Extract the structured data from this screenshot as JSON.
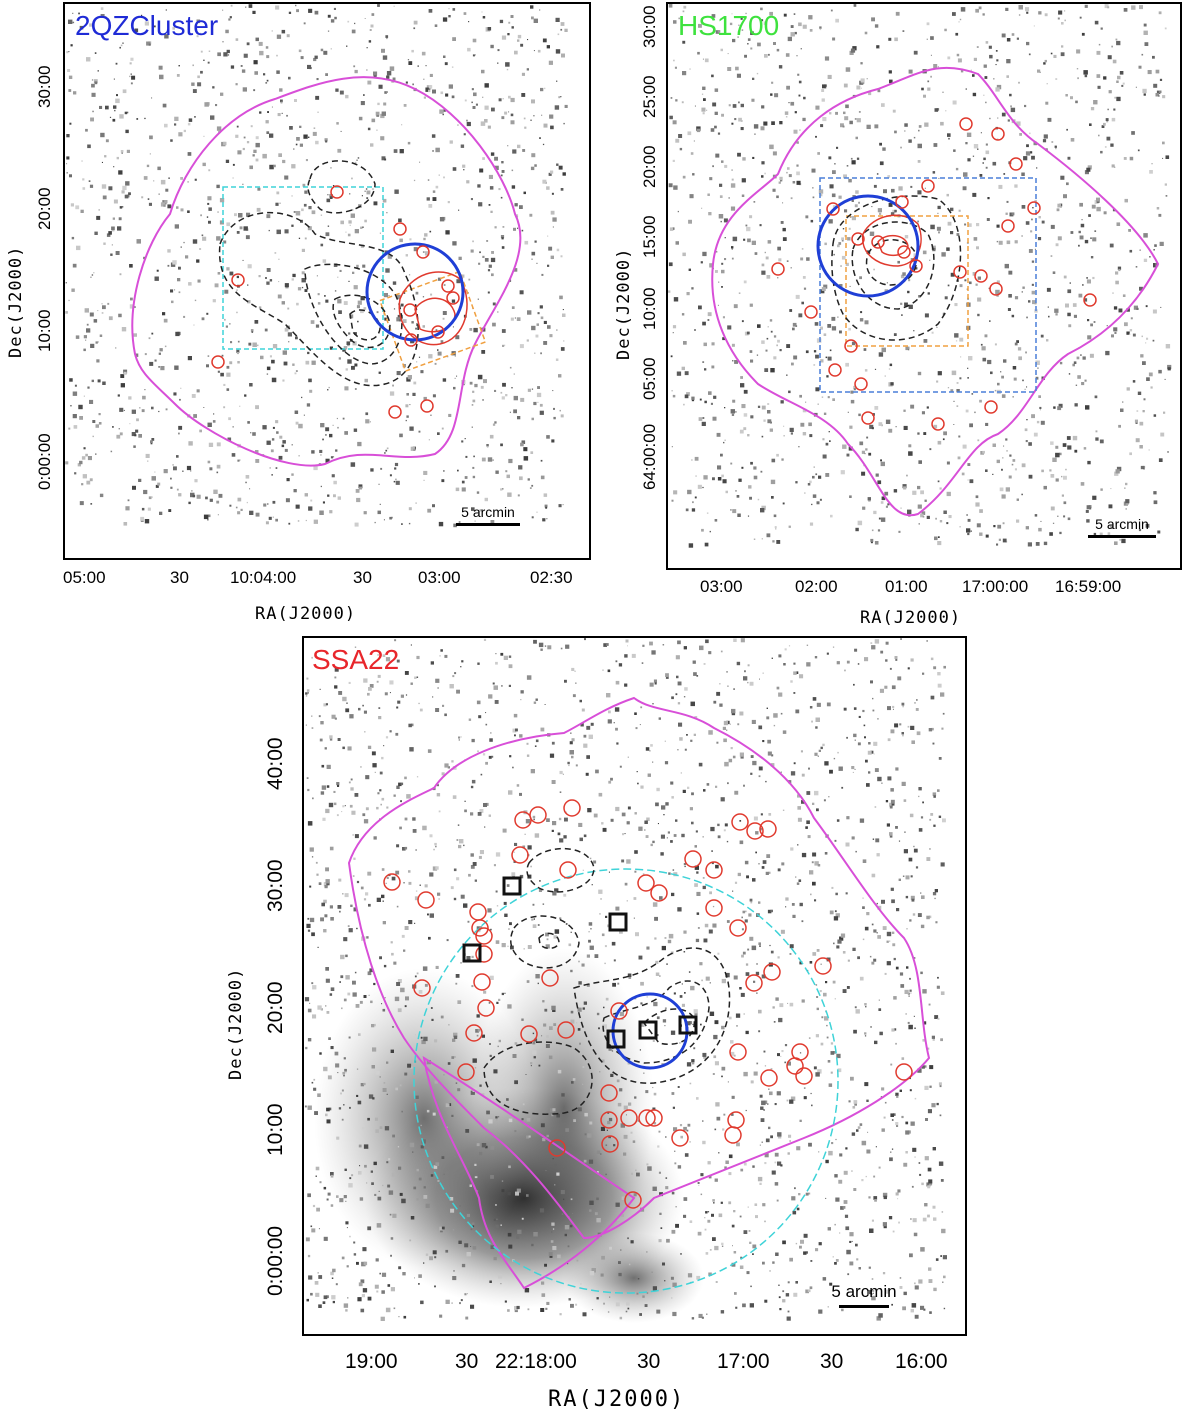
{
  "panels": [
    {
      "id": "2qz",
      "title": "2QZCluster",
      "title_color": "#1f2bd6",
      "scale_label": "5 arcmin",
      "x_ticks": [
        "05:00",
        "30",
        "10:04:00",
        "30",
        "03:00",
        "02:30"
      ],
      "y_ticks": [
        "30:00",
        "20:00",
        "10:00",
        "0:00:00"
      ],
      "x_label": "RA(J2000)",
      "y_label": "Dec(J2000)"
    },
    {
      "id": "hs1700",
      "title": "HS1700",
      "title_color": "#3ee23e",
      "scale_label": "5 arcmin",
      "x_ticks": [
        "03:00",
        "02:00",
        "01:00",
        "17:00:00",
        "16:59:00"
      ],
      "y_ticks": [
        "30:00",
        "25:00",
        "20:00",
        "15:00",
        "10:00",
        "05:00",
        "64:00:00"
      ],
      "x_label": "RA(J2000)",
      "y_label": "Dec(J2000)"
    },
    {
      "id": "ssa22",
      "title": "SSA22",
      "title_color": "#e8262b",
      "scale_label": "5 arcmin",
      "x_ticks": [
        "19:00",
        "30",
        "22:18:00",
        "30",
        "17:00",
        "30",
        "16:00"
      ],
      "y_ticks": [
        "40:00",
        "30:00",
        "20:00",
        "10:00",
        "0:00:00"
      ],
      "x_label": "RA(J2000)",
      "y_label": "Dec(J2000)"
    }
  ],
  "colors": {
    "survey_outline": "#d84fd8",
    "source_circle": "#e03a2e",
    "field_circle": "#1f3fd6",
    "cyan_box": "#3fd3d8",
    "orange_box": "#f0a040",
    "blue_box": "#4a7fd8",
    "density_contour": "#222222",
    "red_contour": "#e03a2e",
    "protocluster_square": "#111111"
  }
}
